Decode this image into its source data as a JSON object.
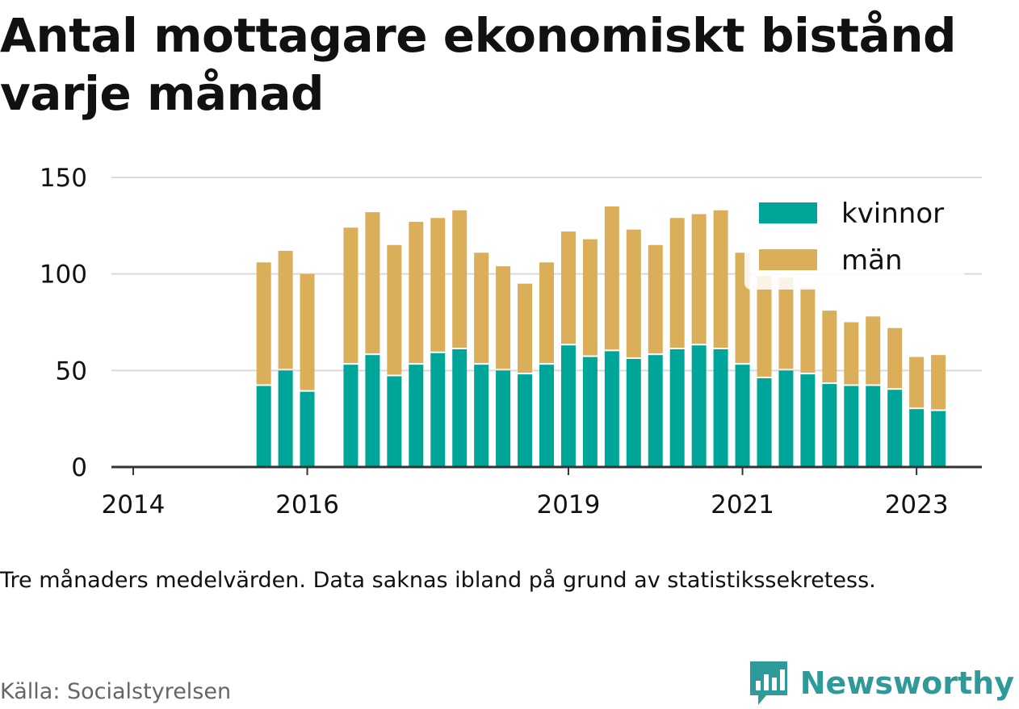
{
  "title": "Antal mottagare ekonomiskt bistånd varje månad",
  "note": "Tre månaders medelvärden. Data saknas ibland på grund av statistikssekretess.",
  "source": "Källa: Socialstyrelsen",
  "brand": {
    "name": "Newsworthy",
    "icon": "newsworthy-logo-icon"
  },
  "colors": {
    "kvinnor": "#00a59a",
    "man": "#dbae5a",
    "grid": "#d9d9d9",
    "axis": "#333333",
    "text": "#111111"
  },
  "chart_data": {
    "type": "bar",
    "stacked": true,
    "ylim": [
      0,
      150
    ],
    "yticks": [
      0,
      50,
      100,
      150
    ],
    "ytick_labels": [
      "0",
      "50",
      "100",
      "150"
    ],
    "x_range": [
      2013.75,
      2023.75
    ],
    "xticks": [
      2014,
      2016,
      2019,
      2021,
      2023
    ],
    "xtick_labels": [
      "2014",
      "2016",
      "2019",
      "2021",
      "2023"
    ],
    "grid": true,
    "legend_position": "top-right",
    "x": [
      2015.5,
      2015.75,
      2016.0,
      2016.5,
      2016.75,
      2017.0,
      2017.25,
      2017.5,
      2017.75,
      2018.0,
      2018.25,
      2018.5,
      2018.75,
      2019.0,
      2019.25,
      2019.5,
      2019.75,
      2020.0,
      2020.25,
      2020.5,
      2020.75,
      2021.0,
      2021.25,
      2021.5,
      2021.75,
      2022.0,
      2022.25,
      2022.5,
      2022.75,
      2023.0,
      2023.25
    ],
    "series": [
      {
        "name": "kvinnor",
        "color": "#00a59a",
        "values": [
          42,
          50,
          39,
          53,
          58,
          47,
          53,
          59,
          61,
          53,
          50,
          48,
          53,
          63,
          57,
          60,
          56,
          58,
          61,
          63,
          61,
          53,
          46,
          50,
          48,
          43,
          42,
          42,
          40,
          30,
          29
        ]
      },
      {
        "name": "män",
        "color": "#dbae5a",
        "values": [
          64,
          62,
          61,
          71,
          74,
          68,
          74,
          70,
          72,
          58,
          54,
          47,
          53,
          59,
          61,
          75,
          67,
          57,
          68,
          68,
          72,
          58,
          53,
          48,
          45,
          38,
          33,
          36,
          32,
          27,
          29
        ]
      }
    ]
  }
}
